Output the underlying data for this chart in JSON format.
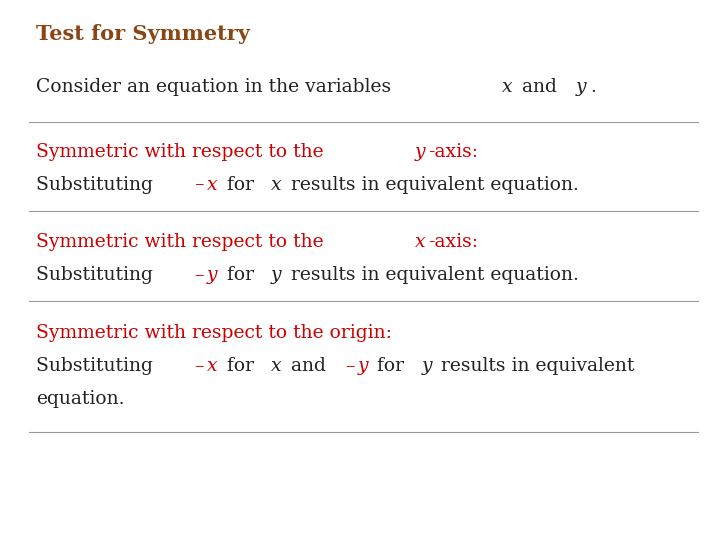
{
  "title": "Test for Symmetry",
  "title_color": "#8B4513",
  "title_fontsize": 15,
  "title_bold": true,
  "bg_color": "#FFFFFF",
  "line_color": "#999999",
  "text_color_black": "#222222",
  "text_color_red": "#CC0000",
  "body_fontsize": 13.5,
  "intro_text": "Consider an equation in the variables ",
  "intro_italic": [
    "x",
    " and ",
    "y",
    "."
  ],
  "sections": [
    {
      "heading_red": "Symmetric with respect to the ",
      "heading_italic": "y",
      "heading_suffix": "-axis:",
      "body_parts": [
        {
          "text": "Substituting ",
          "color": "black",
          "italic": false
        },
        {
          "text": "–",
          "color": "red",
          "italic": false
        },
        {
          "text": "x",
          "color": "red",
          "italic": true
        },
        {
          "text": " for ",
          "color": "black",
          "italic": false
        },
        {
          "text": "x",
          "color": "black",
          "italic": true
        },
        {
          "text": " results in equivalent equation.",
          "color": "black",
          "italic": false
        }
      ]
    },
    {
      "heading_red": "Symmetric with respect to the ",
      "heading_italic": "x",
      "heading_suffix": "-axis:",
      "body_parts": [
        {
          "text": "Substituting ",
          "color": "black",
          "italic": false
        },
        {
          "text": "–",
          "color": "red",
          "italic": false
        },
        {
          "text": "y",
          "color": "red",
          "italic": true
        },
        {
          "text": " for ",
          "color": "black",
          "italic": false
        },
        {
          "text": "y",
          "color": "black",
          "italic": true
        },
        {
          "text": " results in equivalent equation.",
          "color": "black",
          "italic": false
        }
      ]
    },
    {
      "heading_red": "Symmetric with respect to the origin:",
      "heading_italic": "",
      "heading_suffix": "",
      "body_parts": [
        {
          "text": "Substituting ",
          "color": "black",
          "italic": false
        },
        {
          "text": "–",
          "color": "red",
          "italic": false
        },
        {
          "text": "x",
          "color": "red",
          "italic": true
        },
        {
          "text": " for ",
          "color": "black",
          "italic": false
        },
        {
          "text": "x",
          "color": "black",
          "italic": true
        },
        {
          "text": " and ",
          "color": "black",
          "italic": false
        },
        {
          "text": "–",
          "color": "red",
          "italic": false
        },
        {
          "text": "y",
          "color": "red",
          "italic": true
        },
        {
          "text": " for ",
          "color": "black",
          "italic": false
        },
        {
          "text": "y",
          "color": "black",
          "italic": true
        },
        {
          "text": " results in equivalent equation.",
          "color": "black",
          "italic": false
        }
      ],
      "body_wrap": true
    }
  ]
}
